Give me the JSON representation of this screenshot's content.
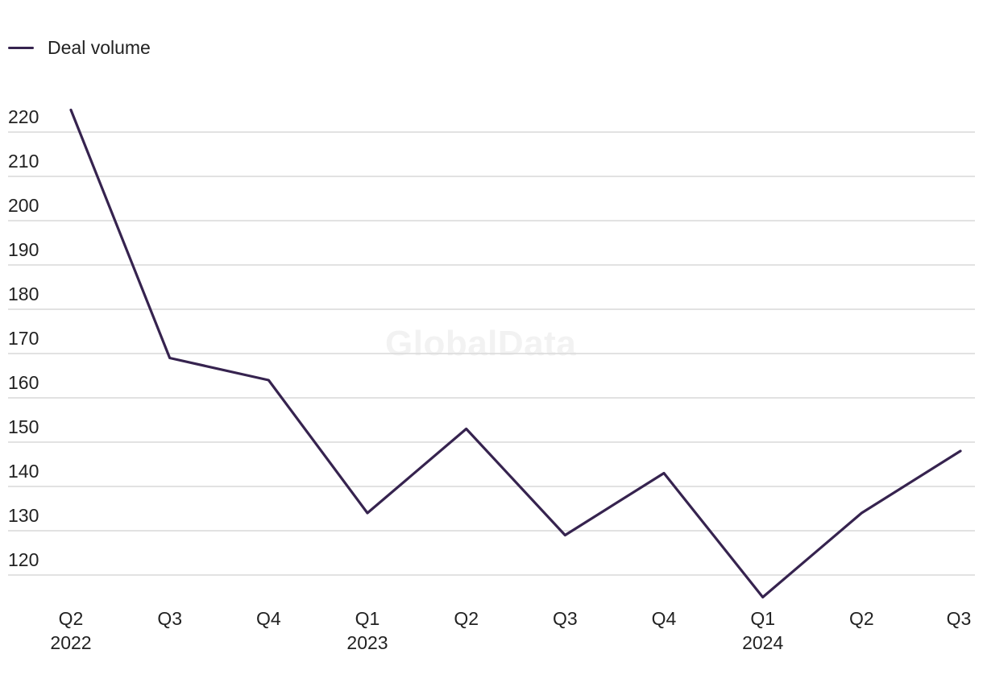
{
  "legend": {
    "label": "Deal volume"
  },
  "watermark": "GlobalData",
  "colors": {
    "series": "#36234f",
    "grid": "#d9d9d9"
  },
  "chart_data": {
    "type": "line",
    "categories": [
      "Q2 2022",
      "Q3",
      "Q4",
      "Q1 2023",
      "Q2",
      "Q3",
      "Q4",
      "Q1 2024",
      "Q2",
      "Q3"
    ],
    "category_labels": [
      [
        "Q2",
        "2022"
      ],
      [
        "Q3",
        ""
      ],
      [
        "Q4",
        ""
      ],
      [
        "Q1",
        "2023"
      ],
      [
        "Q2",
        ""
      ],
      [
        "Q3",
        ""
      ],
      [
        "Q4",
        ""
      ],
      [
        "Q1",
        "2024"
      ],
      [
        "Q2",
        ""
      ],
      [
        "Q3",
        ""
      ]
    ],
    "series": [
      {
        "name": "Deal volume",
        "values": [
          225,
          169,
          164,
          134,
          153,
          129,
          143,
          115,
          134,
          148
        ]
      }
    ],
    "yticks": [
      120,
      130,
      140,
      150,
      160,
      170,
      180,
      190,
      200,
      210,
      220
    ],
    "ylim": [
      113,
      227
    ],
    "grid": true,
    "legend_position": "top-left"
  }
}
